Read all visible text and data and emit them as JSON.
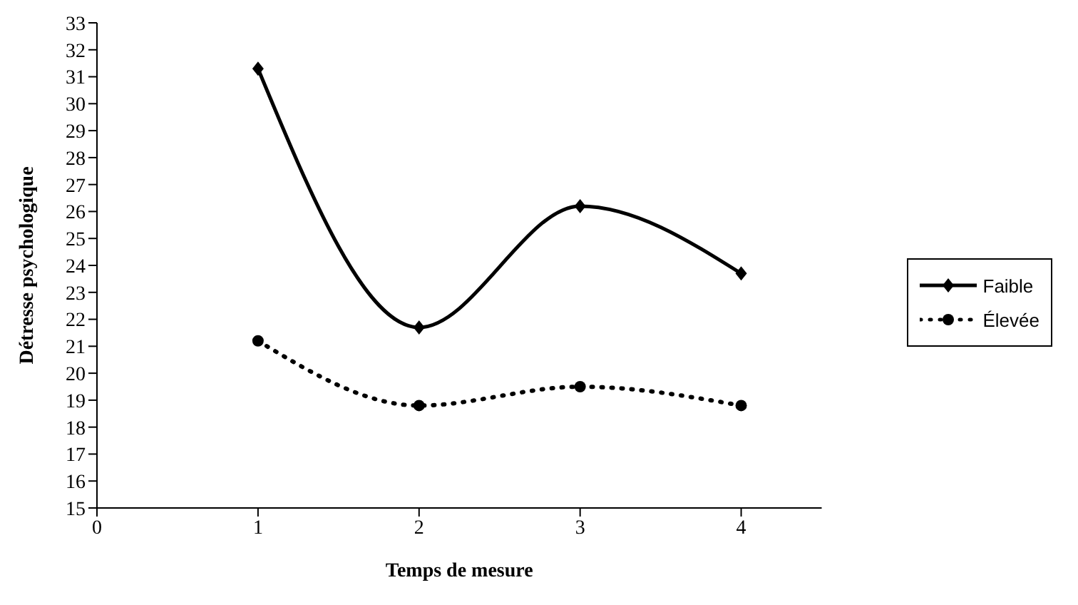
{
  "chart_data": {
    "type": "line",
    "xlabel": "Temps de mesure",
    "ylabel": "Détresse psychologique",
    "x": [
      1,
      2,
      3,
      4
    ],
    "series": [
      {
        "name": "Faible",
        "color": "#000000",
        "values": [
          31.3,
          21.7,
          26.2,
          23.7
        ],
        "marker": "diamond",
        "line_style": "solid"
      },
      {
        "name": "Élevée",
        "color": "#000000",
        "values": [
          21.2,
          18.8,
          19.5,
          18.8
        ],
        "marker": "circle",
        "line_style": "dotted"
      }
    ],
    "xlim": [
      0,
      4.5
    ],
    "xticks": [
      0,
      1,
      2,
      3,
      4
    ],
    "ylim": [
      15,
      33
    ],
    "yticks": [
      15,
      16,
      17,
      18,
      19,
      20,
      21,
      22,
      23,
      24,
      25,
      26,
      27,
      28,
      29,
      30,
      31,
      32,
      33
    ],
    "grid": false,
    "legend": "right"
  }
}
